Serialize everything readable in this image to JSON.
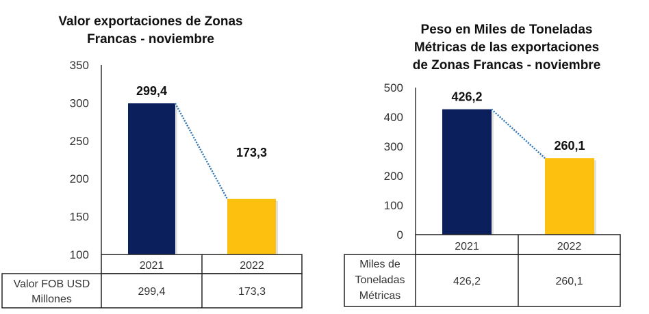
{
  "chart_data": [
    {
      "type": "bar",
      "title": "Valor exportaciones de Zonas Francas - noviembre",
      "title_lines": [
        "Valor exportaciones de Zonas",
        "Francas - noviembre"
      ],
      "categories": [
        "2021",
        "2022"
      ],
      "values": [
        299.4,
        173.3
      ],
      "data_labels": [
        "299,4",
        "173,3"
      ],
      "ylim": [
        100,
        350
      ],
      "yticks": [
        100,
        150,
        200,
        250,
        300,
        350
      ],
      "ytick_labels": [
        "100",
        "150",
        "200",
        "250",
        "300",
        "350"
      ],
      "grid": false,
      "trend_line": "dotted",
      "colors": [
        "#0b1f5c",
        "#fdc00f"
      ],
      "trend_color": "#2e75b6",
      "data_table": {
        "row_label": [
          "Valor FOB USD",
          "Millones"
        ],
        "values": [
          "299,4",
          "173,3"
        ]
      }
    },
    {
      "type": "bar",
      "title": "Peso en Miles de Toneladas Métricas de las exportaciones de Zonas Francas - noviembre",
      "title_lines": [
        "Peso en Miles de Toneladas",
        "Métricas de las exportaciones",
        "de Zonas Francas - noviembre"
      ],
      "categories": [
        "2021",
        "2022"
      ],
      "values": [
        426.2,
        260.1
      ],
      "data_labels": [
        "426,2",
        "260,1"
      ],
      "ylim": [
        0,
        500
      ],
      "yticks": [
        0,
        100,
        200,
        300,
        400,
        500
      ],
      "ytick_labels": [
        "0",
        "100",
        "200",
        "300",
        "400",
        "500"
      ],
      "grid": false,
      "trend_line": "dotted",
      "colors": [
        "#0b1f5c",
        "#fdc00f"
      ],
      "trend_color": "#2e75b6",
      "data_table": {
        "row_label": [
          "Miles de",
          "Toneladas",
          "Métricas"
        ],
        "values": [
          "426,2",
          "260,1"
        ]
      }
    }
  ]
}
